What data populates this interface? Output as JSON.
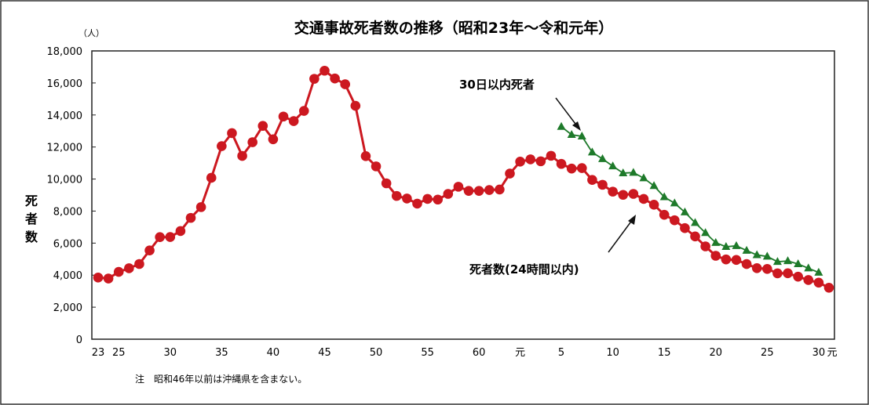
{
  "chart_data": {
    "type": "line",
    "title": "交通事故死者数の推移（昭和23年～令和元年）",
    "unit": "（人）",
    "ylabel": "死者数",
    "ylabel_chars": [
      "死",
      "者",
      "数"
    ],
    "ylim": [
      0,
      18000
    ],
    "yticks": [
      0,
      2000,
      4000,
      6000,
      8000,
      10000,
      12000,
      14000,
      16000,
      18000
    ],
    "ytick_labels": [
      "0",
      "2,000",
      "4,000",
      "6,000",
      "8,000",
      "10,000",
      "12,000",
      "14,000",
      "16,000",
      "18,000"
    ],
    "x_start_year": 1948,
    "xtick_labels": [
      {
        "index": 0,
        "label": "23"
      },
      {
        "index": 2,
        "label": "25"
      },
      {
        "index": 7,
        "label": "30"
      },
      {
        "index": 12,
        "label": "35"
      },
      {
        "index": 17,
        "label": "40"
      },
      {
        "index": 22,
        "label": "45"
      },
      {
        "index": 27,
        "label": "50"
      },
      {
        "index": 32,
        "label": "55"
      },
      {
        "index": 37,
        "label": "60"
      },
      {
        "index": 41,
        "label": "元"
      },
      {
        "index": 45,
        "label": "5"
      },
      {
        "index": 50,
        "label": "10"
      },
      {
        "index": 55,
        "label": "15"
      },
      {
        "index": 60,
        "label": "20"
      },
      {
        "index": 65,
        "label": "25"
      },
      {
        "index": 70,
        "label": "30"
      },
      {
        "index": 71,
        "label": "元"
      }
    ],
    "grid": false,
    "series": [
      {
        "name": "死者数(24時間以内)",
        "color": "#cc1820",
        "marker": "circle",
        "start_index": 0,
        "values": [
          3848,
          3790,
          4202,
          4429,
          4696,
          5544,
          6374,
          6379,
          6751,
          7575,
          8248,
          10079,
          12055,
          12865,
          11445,
          12301,
          13318,
          12484,
          13904,
          13618,
          14256,
          16257,
          16765,
          16278,
          15918,
          14574,
          11432,
          10792,
          9734,
          8945,
          8783,
          8466,
          8760,
          8719,
          9073,
          9520,
          9262,
          9261,
          9317,
          9347,
          10344,
          11086,
          11227,
          11109,
          11452,
          10945,
          10653,
          10684,
          9943,
          9642,
          9214,
          9012,
          9073,
          8757,
          8396,
          7768,
          7425,
          6937,
          6415,
          5796,
          5209,
          4979,
          4948,
          4691,
          4438,
          4388,
          4113,
          4117,
          3904,
          3694,
          3532,
          3215
        ]
      },
      {
        "name": "30日以内死者",
        "color": "#1e7a2a",
        "marker": "triangle",
        "start_index": 45,
        "values": [
          13269,
          12768,
          12670,
          11674,
          11254,
          10805,
          10372,
          10403,
          10060,
          9575,
          8877,
          8492,
          7931,
          7272,
          6639,
          6023,
          5772,
          5828,
          5535,
          5261,
          5165,
          4838,
          4885,
          4698,
          4431,
          4166
        ]
      }
    ],
    "annotations": [
      "30日以内死者",
      "死者数(24時間以内)"
    ],
    "note": "注　昭和46年以前は沖縄県を含まない。"
  }
}
